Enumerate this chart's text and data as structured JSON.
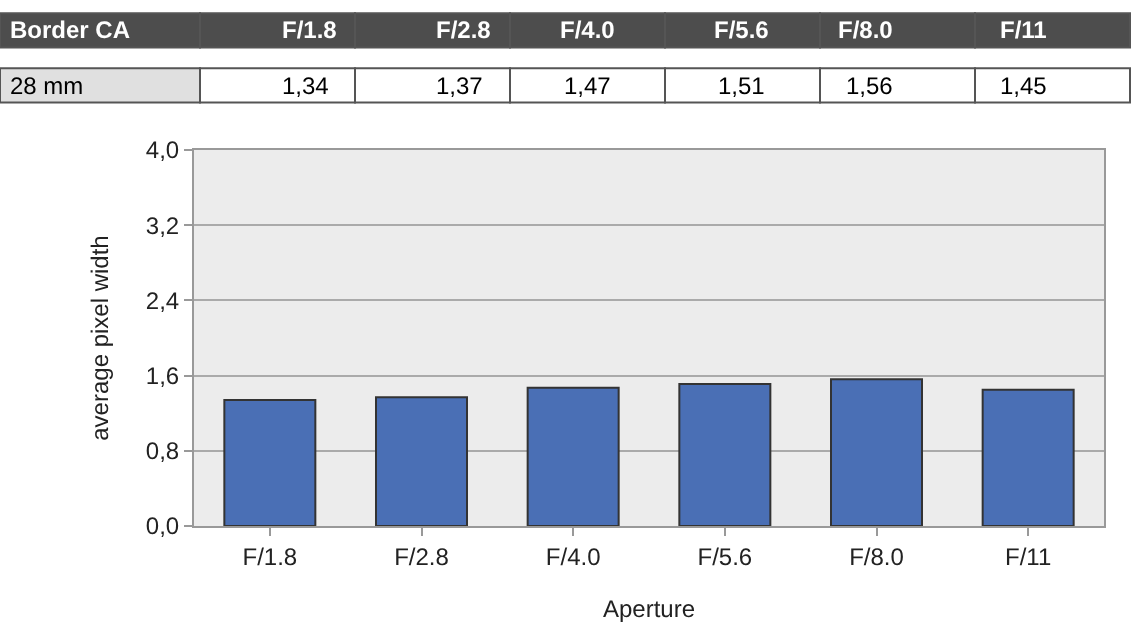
{
  "chart_data": {
    "type": "bar",
    "title": "Border CA",
    "categories": [
      "F/1.8",
      "F/2.8",
      "F/4.0",
      "F/5.6",
      "F/8.0",
      "F/11"
    ],
    "series": [
      {
        "name": "28 mm",
        "color": "#4a6fb5",
        "values": [
          1.34,
          1.37,
          1.47,
          1.51,
          1.56,
          1.45
        ],
        "value_labels": [
          "1,34",
          "1,37",
          "1,47",
          "1,51",
          "1,56",
          "1,45"
        ]
      }
    ],
    "xlabel": "Aperture",
    "ylabel": "average pixel width",
    "ylim": [
      0,
      4
    ],
    "yticks": [
      {
        "value": 0,
        "label": "0,0"
      },
      {
        "value": 0.8,
        "label": "0,8"
      },
      {
        "value": 1.6,
        "label": "1,6"
      },
      {
        "value": 2.4,
        "label": "2,4"
      },
      {
        "value": 3.2,
        "label": "3,2"
      },
      {
        "value": 4,
        "label": "4,0"
      }
    ],
    "grid": "y",
    "legend": false
  }
}
